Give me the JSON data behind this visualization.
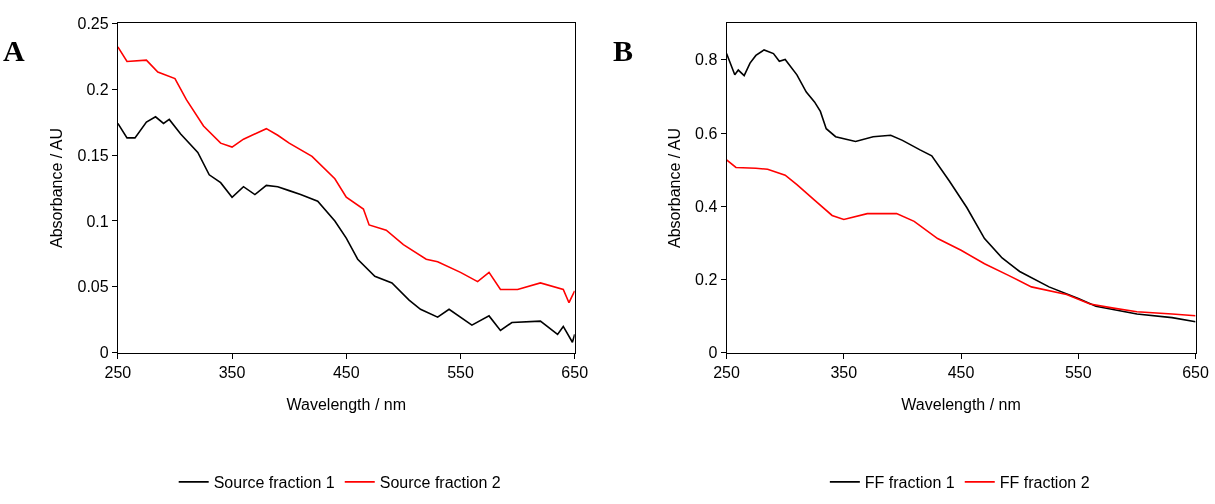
{
  "chart_data": [
    {
      "type": "line",
      "title": "A",
      "xlabel": "Wavelength / nm",
      "ylabel": "Absorbance / AU",
      "xlim": [
        250,
        650
      ],
      "xticks": [
        250,
        350,
        450,
        550,
        650
      ],
      "ylim": [
        0,
        0.25
      ],
      "yticks": [
        0,
        0.05,
        0.1,
        0.15,
        0.2,
        0.25
      ],
      "grid": false,
      "legend": "bottom",
      "marker": "none",
      "line_style": "solid",
      "series": [
        {
          "name": "Source fraction 1",
          "color": "#000000",
          "x": [
            250,
            258,
            265,
            275,
            283,
            290,
            295,
            305,
            320,
            330,
            340,
            350,
            360,
            370,
            380,
            390,
            400,
            410,
            425,
            440,
            450,
            460,
            475,
            490,
            505,
            515,
            530,
            540,
            560,
            575,
            585,
            595,
            620,
            635,
            640,
            648,
            650
          ],
          "values": [
            0.174,
            0.163,
            0.163,
            0.175,
            0.179,
            0.174,
            0.177,
            0.166,
            0.152,
            0.135,
            0.129,
            0.118,
            0.126,
            0.12,
            0.127,
            0.126,
            0.123,
            0.12,
            0.115,
            0.1,
            0.087,
            0.071,
            0.058,
            0.053,
            0.04,
            0.033,
            0.027,
            0.033,
            0.021,
            0.028,
            0.017,
            0.023,
            0.024,
            0.014,
            0.02,
            0.008,
            0.014
          ]
        },
        {
          "name": "Source fraction 2",
          "color": "#ff0000",
          "x": [
            250,
            258,
            275,
            285,
            300,
            310,
            325,
            340,
            350,
            360,
            380,
            390,
            400,
            420,
            440,
            450,
            465,
            470,
            485,
            500,
            520,
            530,
            550,
            565,
            575,
            585,
            600,
            620,
            640,
            645,
            650
          ],
          "values": [
            0.232,
            0.221,
            0.222,
            0.213,
            0.208,
            0.192,
            0.172,
            0.159,
            0.156,
            0.162,
            0.17,
            0.165,
            0.159,
            0.149,
            0.132,
            0.118,
            0.109,
            0.097,
            0.093,
            0.082,
            0.071,
            0.069,
            0.061,
            0.054,
            0.061,
            0.048,
            0.048,
            0.053,
            0.048,
            0.038,
            0.047
          ]
        }
      ]
    },
    {
      "type": "line",
      "title": "B",
      "xlabel": "Wavelength / nm",
      "ylabel": "Absorbance / AU",
      "xlim": [
        250,
        650
      ],
      "xticks": [
        250,
        350,
        450,
        550,
        650
      ],
      "ylim": [
        0,
        0.9
      ],
      "yticks": [
        0,
        0.2,
        0.4,
        0.6,
        0.8
      ],
      "grid": false,
      "legend": "bottom",
      "marker": "none",
      "line_style": "solid",
      "series": [
        {
          "name": "FF fraction 1",
          "color": "#000000",
          "x": [
            250,
            257,
            260,
            265,
            270,
            275,
            282,
            290,
            295,
            300,
            310,
            318,
            325,
            330,
            335,
            343,
            360,
            375,
            390,
            400,
            415,
            425,
            440,
            455,
            470,
            485,
            500,
            525,
            550,
            565,
            600,
            630,
            650
          ],
          "values": [
            0.817,
            0.759,
            0.772,
            0.757,
            0.791,
            0.812,
            0.827,
            0.817,
            0.796,
            0.801,
            0.759,
            0.712,
            0.685,
            0.659,
            0.612,
            0.59,
            0.577,
            0.59,
            0.594,
            0.58,
            0.554,
            0.538,
            0.469,
            0.396,
            0.312,
            0.259,
            0.222,
            0.18,
            0.148,
            0.127,
            0.106,
            0.096,
            0.085
          ]
        },
        {
          "name": "FF fraction 2",
          "color": "#ff0000",
          "x": [
            250,
            258,
            275,
            285,
            300,
            310,
            325,
            340,
            350,
            370,
            395,
            410,
            430,
            450,
            470,
            490,
            510,
            540,
            560,
            580,
            600,
            630,
            650
          ],
          "values": [
            0.527,
            0.506,
            0.504,
            0.501,
            0.485,
            0.459,
            0.417,
            0.375,
            0.364,
            0.38,
            0.38,
            0.359,
            0.312,
            0.28,
            0.243,
            0.212,
            0.18,
            0.159,
            0.133,
            0.122,
            0.112,
            0.106,
            0.101
          ]
        }
      ]
    }
  ]
}
